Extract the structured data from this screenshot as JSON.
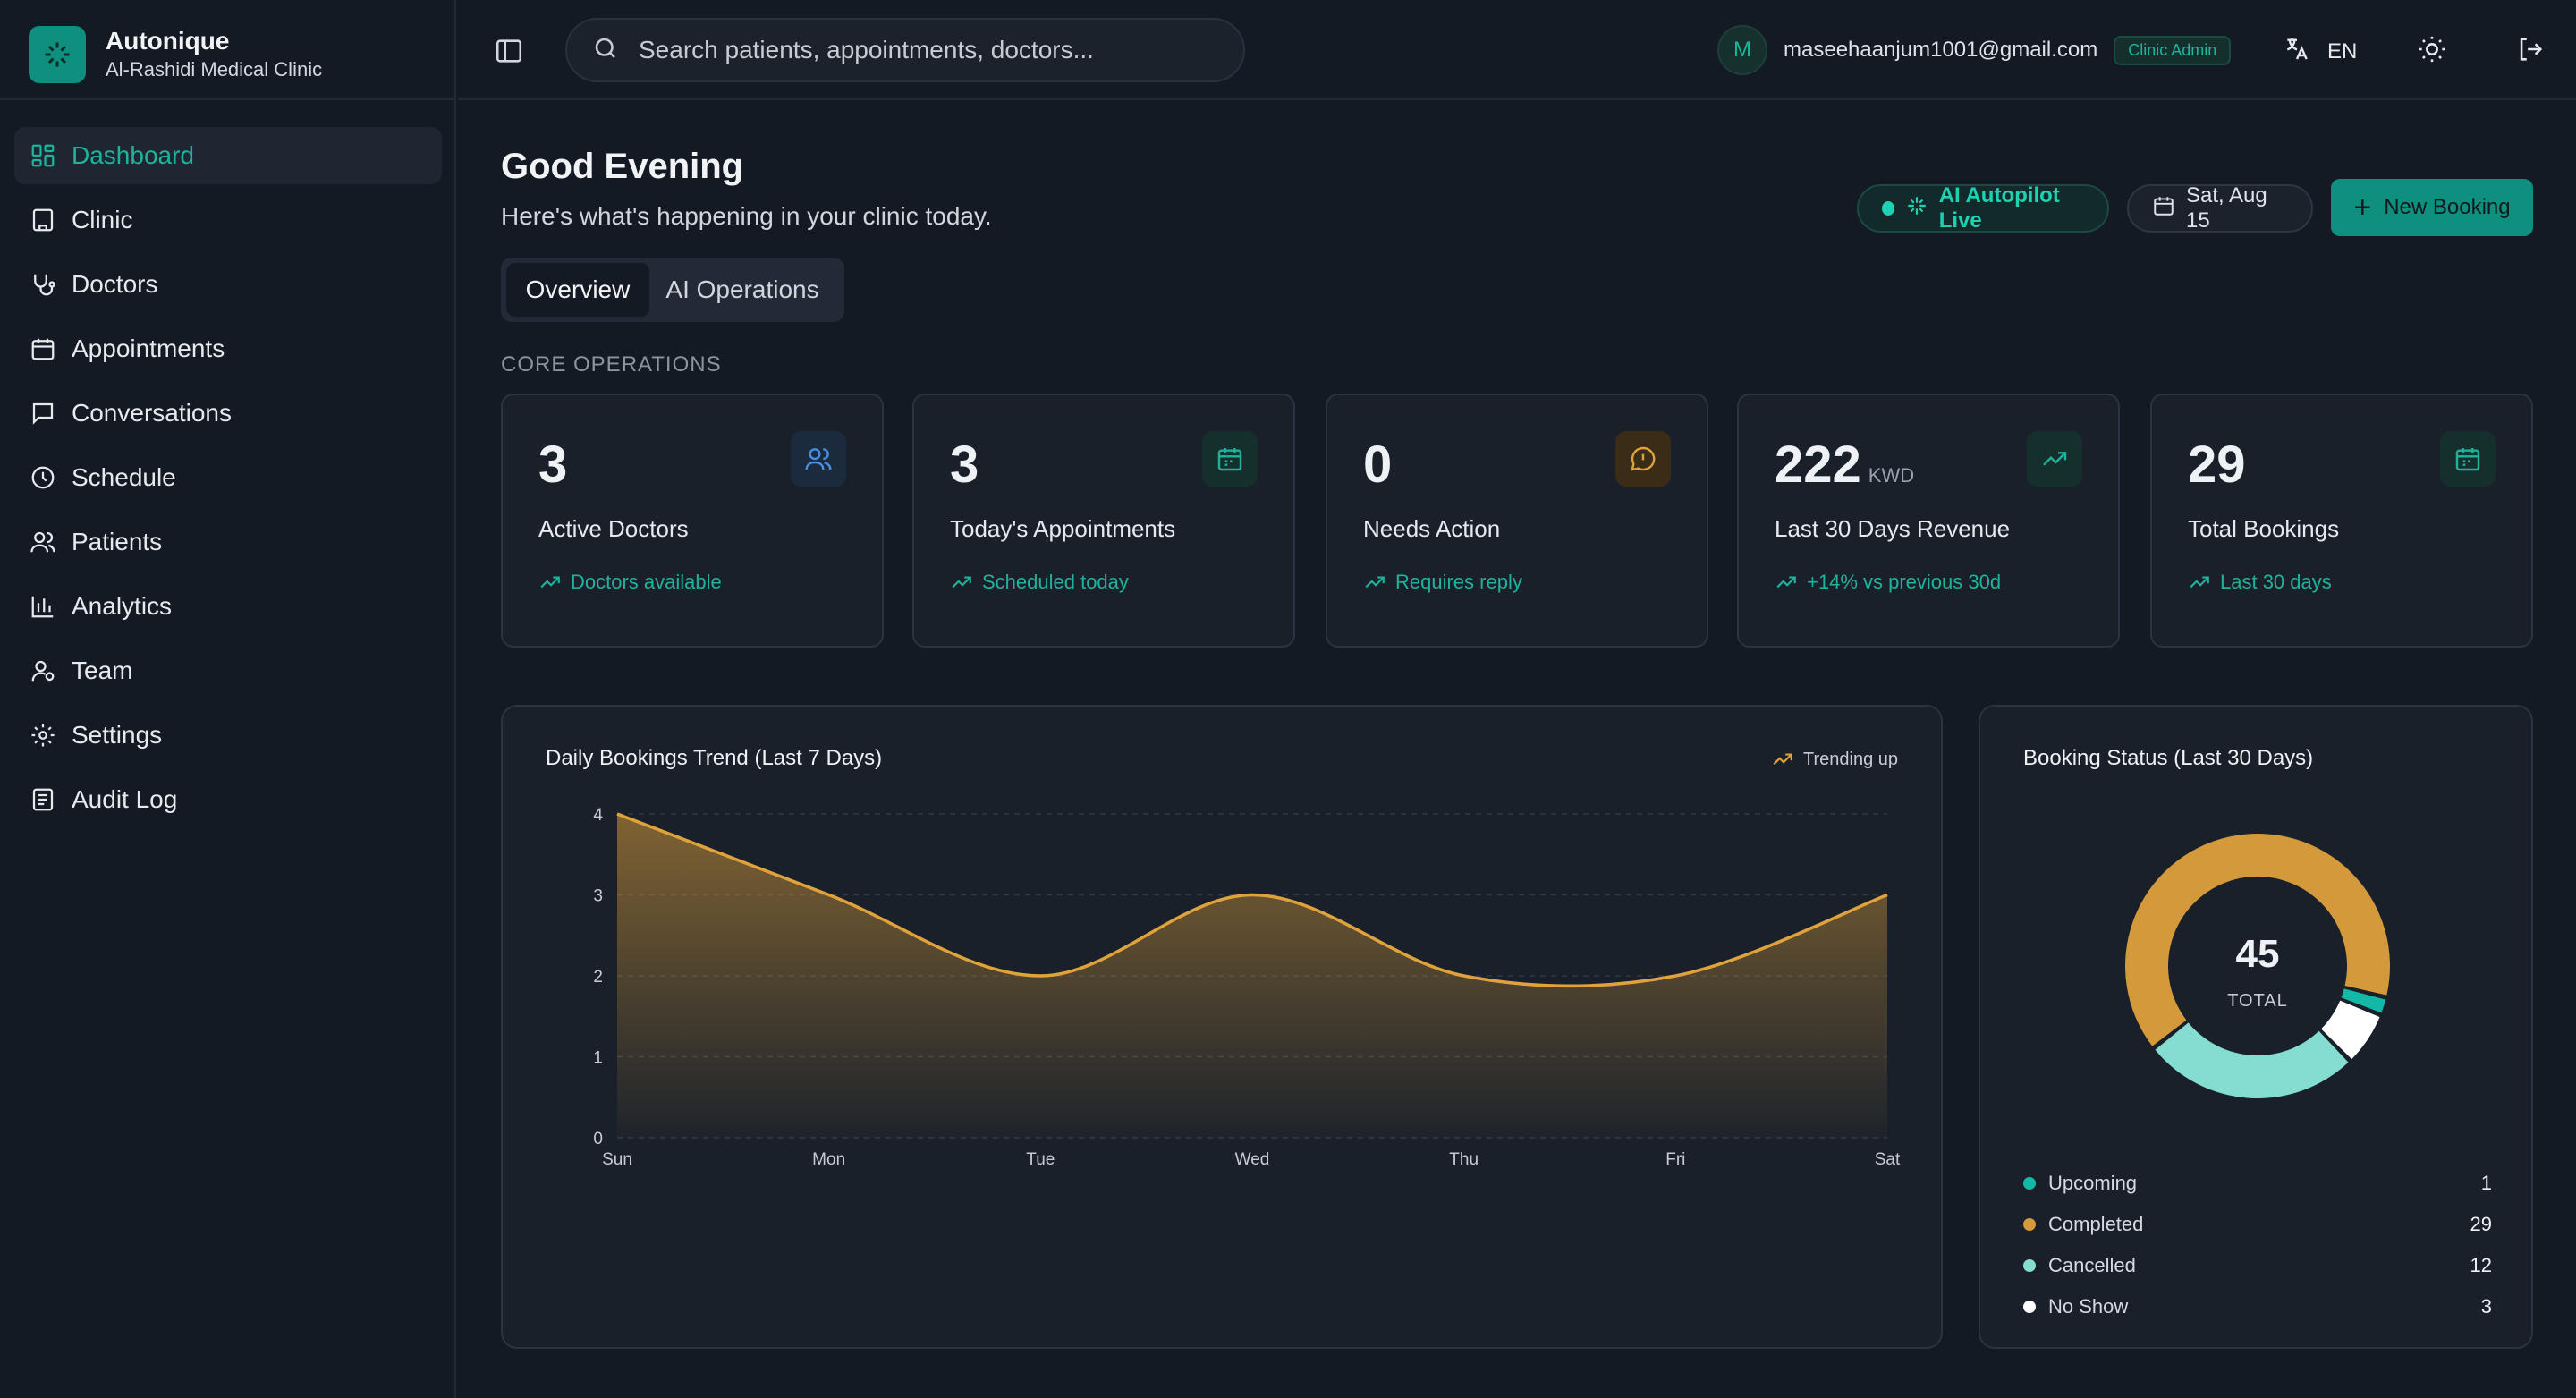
{
  "brand": {
    "name": "Autonique",
    "clinic": "Al-Rashidi Medical Clinic"
  },
  "sidebar": {
    "items": [
      {
        "label": "Dashboard",
        "icon": "dashboard-icon",
        "active": true
      },
      {
        "label": "Clinic",
        "icon": "building-icon"
      },
      {
        "label": "Doctors",
        "icon": "stethoscope-icon"
      },
      {
        "label": "Appointments",
        "icon": "calendar-icon"
      },
      {
        "label": "Conversations",
        "icon": "message-square-icon"
      },
      {
        "label": "Schedule",
        "icon": "clock-icon"
      },
      {
        "label": "Patients",
        "icon": "users-icon"
      },
      {
        "label": "Analytics",
        "icon": "bar-chart-icon"
      },
      {
        "label": "Team",
        "icon": "user-cog-icon"
      },
      {
        "label": "Settings",
        "icon": "gear-icon"
      },
      {
        "label": "Audit Log",
        "icon": "audit-log-icon"
      }
    ]
  },
  "topbar": {
    "search_placeholder": "Search patients, appointments, doctors...",
    "avatar_initial": "M",
    "email": "maseehaanjum1001@gmail.com",
    "role": "Clinic Admin",
    "language": "EN"
  },
  "header": {
    "greeting": "Good Evening",
    "subtitle": "Here's what's happening in your clinic today.",
    "tabs": [
      "Overview",
      "AI Operations"
    ],
    "autopilot": "AI Autopilot Live",
    "date": "Sat, Aug 15",
    "new_booking": "New Booking"
  },
  "section_label": "CORE OPERATIONS",
  "stats": [
    {
      "value": "3",
      "unit": "",
      "label": "Active Doctors",
      "note": "Doctors available",
      "icon": "users-icon",
      "color": "#4a8fe0"
    },
    {
      "value": "3",
      "unit": "",
      "label": "Today's Appointments",
      "note": "Scheduled today",
      "icon": "calendar-icon",
      "color": "#1fb39c"
    },
    {
      "value": "0",
      "unit": "",
      "label": "Needs Action",
      "note": "Requires reply",
      "icon": "alert-message-icon",
      "color": "#e0a23a"
    },
    {
      "value": "222",
      "unit": "KWD",
      "label": "Last 30 Days Revenue",
      "note": "+14% vs previous 30d",
      "icon": "trending-up-icon",
      "color": "#1fb39c"
    },
    {
      "value": "29",
      "unit": "",
      "label": "Total Bookings",
      "note": "Last 30 days",
      "icon": "calendar-icon",
      "color": "#1fb39c"
    }
  ],
  "trend_chart": {
    "title": "Daily Bookings Trend (Last 7 Days)",
    "badge": "Trending up"
  },
  "status_chart": {
    "title": "Booking Status (Last 30 Days)",
    "total": "45",
    "total_label": "TOTAL"
  },
  "chart_data": [
    {
      "type": "area",
      "title": "Daily Bookings Trend (Last 7 Days)",
      "categories": [
        "Sun",
        "Mon",
        "Tue",
        "Wed",
        "Thu",
        "Fri",
        "Sat"
      ],
      "values": [
        4,
        3,
        2,
        3,
        2,
        2,
        3
      ],
      "ylim": [
        0,
        4
      ],
      "yticks": [
        0,
        1,
        2,
        3,
        4
      ],
      "grid": true,
      "color": "#e0a23a"
    },
    {
      "type": "pie",
      "title": "Booking Status (Last 30 Days)",
      "labels": [
        "Upcoming",
        "Completed",
        "Cancelled",
        "No Show"
      ],
      "values": [
        1,
        29,
        12,
        3
      ],
      "colors": [
        "#14b8a6",
        "#d4993a",
        "#84ddd0",
        "#ffffff"
      ]
    }
  ]
}
